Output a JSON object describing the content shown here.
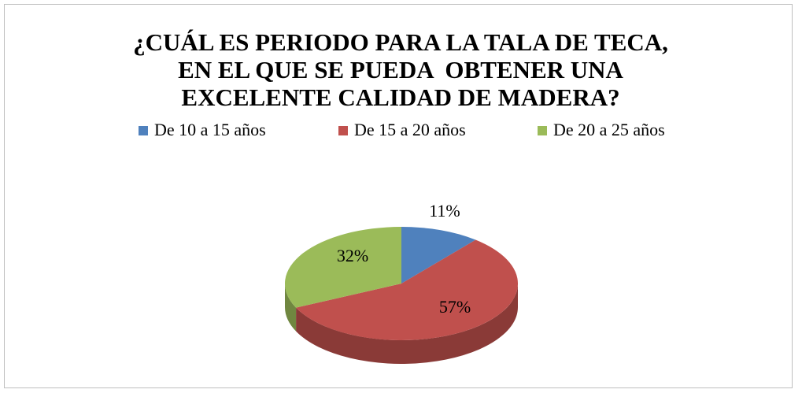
{
  "chart_data": {
    "type": "pie",
    "title": "¿CUÁL ES PERIODO PARA LA TALA DE TECA, EN EL QUE SE PUEDA  OBTENER UNA EXCELENTE CALIDAD DE MADERA?",
    "categories": [
      "De 10 a 15 años",
      "De 15 a 20 años",
      "De 20 a 25 años"
    ],
    "values": [
      11,
      57,
      32
    ],
    "value_labels": [
      "11%",
      "57%",
      "32%"
    ],
    "colors": [
      "#4f81bd",
      "#c0504d",
      "#9bbb59"
    ],
    "legend": "top"
  }
}
